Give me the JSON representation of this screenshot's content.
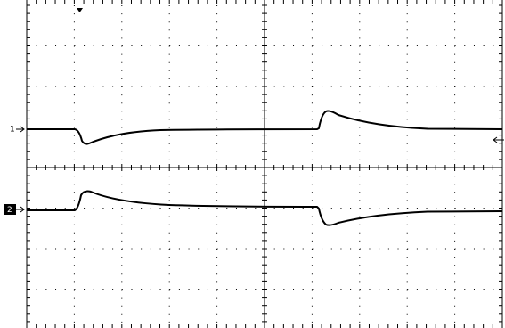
{
  "channels": [
    {
      "label": "1"
    },
    {
      "label": "2"
    }
  ]
}
